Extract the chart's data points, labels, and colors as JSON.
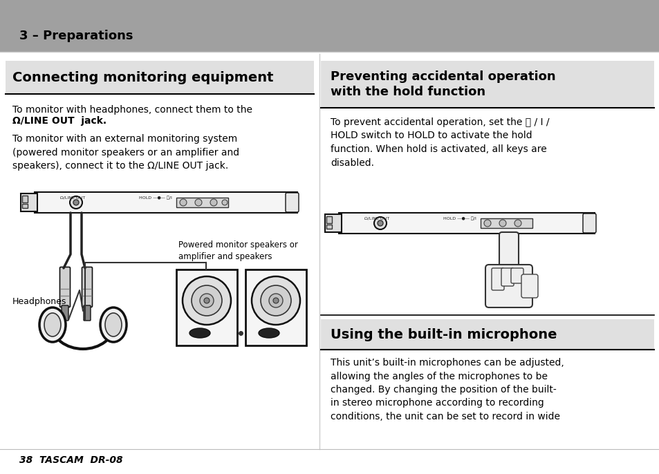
{
  "page_bg": "#ffffff",
  "header_bg": "#a0a0a0",
  "header_text": "3 – Preparations",
  "text_color": "#000000",
  "left_title": "Connecting monitoring equipment",
  "left_para1_normal": "To monitor with headphones, connect them to the\n",
  "left_para1_bold": "Ω/LINE OUT",
  "left_para1_end": " jack.",
  "left_para2": "To monitor with an external monitoring system\n(powered monitor speakers or an amplifier and\nspeakers), connect it to the Ω/LINE OUT jack.",
  "left_headphones_label": "Headphones",
  "left_speakers_label": "Powered monitor speakers or\namplifier and speakers",
  "right_title1": "Preventing accidental operation\nwith the hold function",
  "right_para1": "To prevent accidental operation, set the ⏻ / I /\nHOLD switch to HOLD to activate the hold\nfunction. When hold is activated, all keys are\ndisabled.",
  "right_title2": "Using the built-in microphone",
  "right_para2": "This unit’s built-in microphones can be adjusted,\nallowing the angles of the microphones to be\nchanged. By changing the position of the built-\nin stereo microphone according to recording\nconditions, the unit can be set to record in wide",
  "footer": "38  TASCAM  DR-08",
  "title_bg": "#e0e0e0",
  "divider": "#000000"
}
